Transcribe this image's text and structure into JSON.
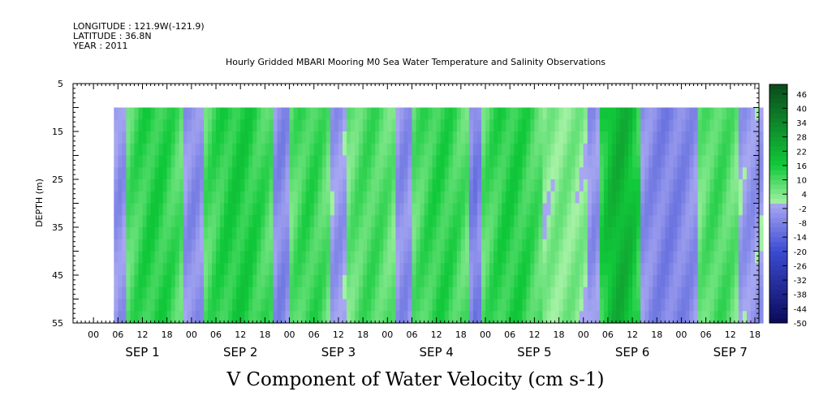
{
  "header": {
    "longitude": "LONGITUDE : 121.9W(-121.9)",
    "latitude": "LATITUDE : 36.8N",
    "year": "YEAR : 2011",
    "title": "Hourly Gridded MBARI Mooring M0 Sea Water Temperature and Salinity Observations"
  },
  "colors": {
    "pos_dark": "#0b4a1c",
    "pos_mid": "#11c93a",
    "pos_light": "#a6f2a6",
    "neg_light": "#a9a9f2",
    "neg_mid": "#3b4bd2",
    "neg_dark": "#0a0a5a"
  },
  "chart_data": {
    "type": "heatmap",
    "title": "Hourly Gridded MBARI Mooring M0 Sea Water Temperature and Salinity Observations",
    "xlabel": "V Component of Water Velocity (cm s-1)",
    "ylabel": "DEPTH (m)",
    "y_ticks": [
      "5",
      "15",
      "25",
      "35",
      "45",
      "55"
    ],
    "ylim": [
      5,
      55
    ],
    "y_reversed": true,
    "x_hour_ticks": [
      "00",
      "06",
      "12",
      "18",
      "00",
      "06",
      "12",
      "18",
      "00",
      "06",
      "12",
      "18",
      "00",
      "06",
      "12",
      "18",
      "00",
      "06",
      "12",
      "18",
      "00",
      "06",
      "12",
      "18",
      "00",
      "06",
      "12",
      "18"
    ],
    "x_day_labels": [
      "SEP 1",
      "SEP 2",
      "SEP 3",
      "SEP 4",
      "SEP 5",
      "SEP 6",
      "SEP 7"
    ],
    "data_depth_range": [
      10,
      55
    ],
    "data_time_range_hours": [
      5,
      164
    ],
    "colorbar_labels": [
      "46",
      "40",
      "34",
      "28",
      "22",
      "16",
      "10",
      "4",
      "-2",
      "-8",
      "-14",
      "-20",
      "-26",
      "-32",
      "-38",
      "-44",
      "-50"
    ],
    "colorbar_range": [
      -50,
      50
    ],
    "pattern": "alternating north/south velocity bands, mostly between -10 and 20 cm/s; strongest positive near Sep 6 morning",
    "bands": [
      {
        "start_hour": 5,
        "end_hour": 8,
        "value": -5
      },
      {
        "start_hour": 8,
        "end_hour": 22,
        "value": 14
      },
      {
        "start_hour": 22,
        "end_hour": 27,
        "value": -6
      },
      {
        "start_hour": 27,
        "end_hour": 44,
        "value": 15
      },
      {
        "start_hour": 44,
        "end_hour": 48,
        "value": -7
      },
      {
        "start_hour": 48,
        "end_hour": 58,
        "value": 12
      },
      {
        "start_hour": 58,
        "end_hour": 62,
        "value": -4
      },
      {
        "start_hour": 62,
        "end_hour": 74,
        "value": 10
      },
      {
        "start_hour": 74,
        "end_hour": 78,
        "value": -6
      },
      {
        "start_hour": 78,
        "end_hour": 92,
        "value": 13
      },
      {
        "start_hour": 92,
        "end_hour": 95,
        "value": -9
      },
      {
        "start_hour": 95,
        "end_hour": 110,
        "value": 14
      },
      {
        "start_hour": 110,
        "end_hour": 121,
        "value": 4
      },
      {
        "start_hour": 121,
        "end_hour": 124,
        "value": -5
      },
      {
        "start_hour": 124,
        "end_hour": 134,
        "value": 22
      },
      {
        "start_hour": 134,
        "end_hour": 148,
        "value": -8
      },
      {
        "start_hour": 148,
        "end_hour": 158,
        "value": 10
      },
      {
        "start_hour": 158,
        "end_hour": 164,
        "value": -4
      }
    ]
  }
}
